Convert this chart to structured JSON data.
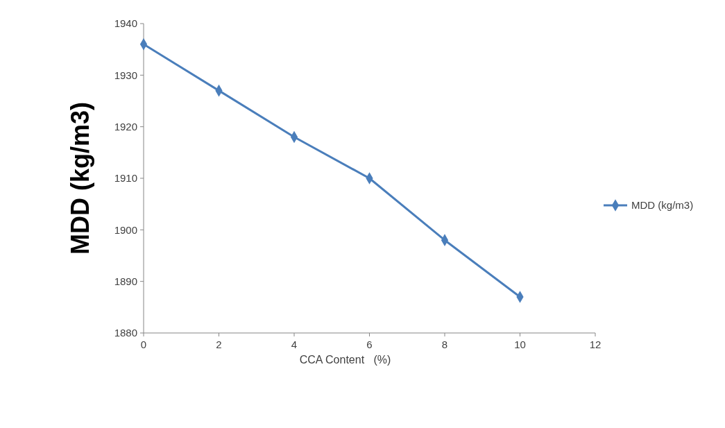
{
  "chart_data": {
    "type": "line",
    "xlabel": "CCA Content   (%)",
    "ylabel": "MDD (kg/m3)",
    "x": [
      0,
      2,
      4,
      6,
      8,
      10
    ],
    "series": [
      {
        "name": "MDD (kg/m3)",
        "color": "#4a7ebb",
        "values": [
          1936,
          1927,
          1918,
          1910,
          1898,
          1887
        ]
      }
    ],
    "xlim": [
      0,
      12
    ],
    "xticks": [
      0,
      2,
      4,
      6,
      8,
      10,
      12
    ],
    "ylim": [
      1880,
      1940
    ],
    "yticks": [
      1880,
      1890,
      1900,
      1910,
      1920,
      1930,
      1940
    ],
    "legend": "right",
    "marker": "diamond",
    "line_style": "solid"
  }
}
